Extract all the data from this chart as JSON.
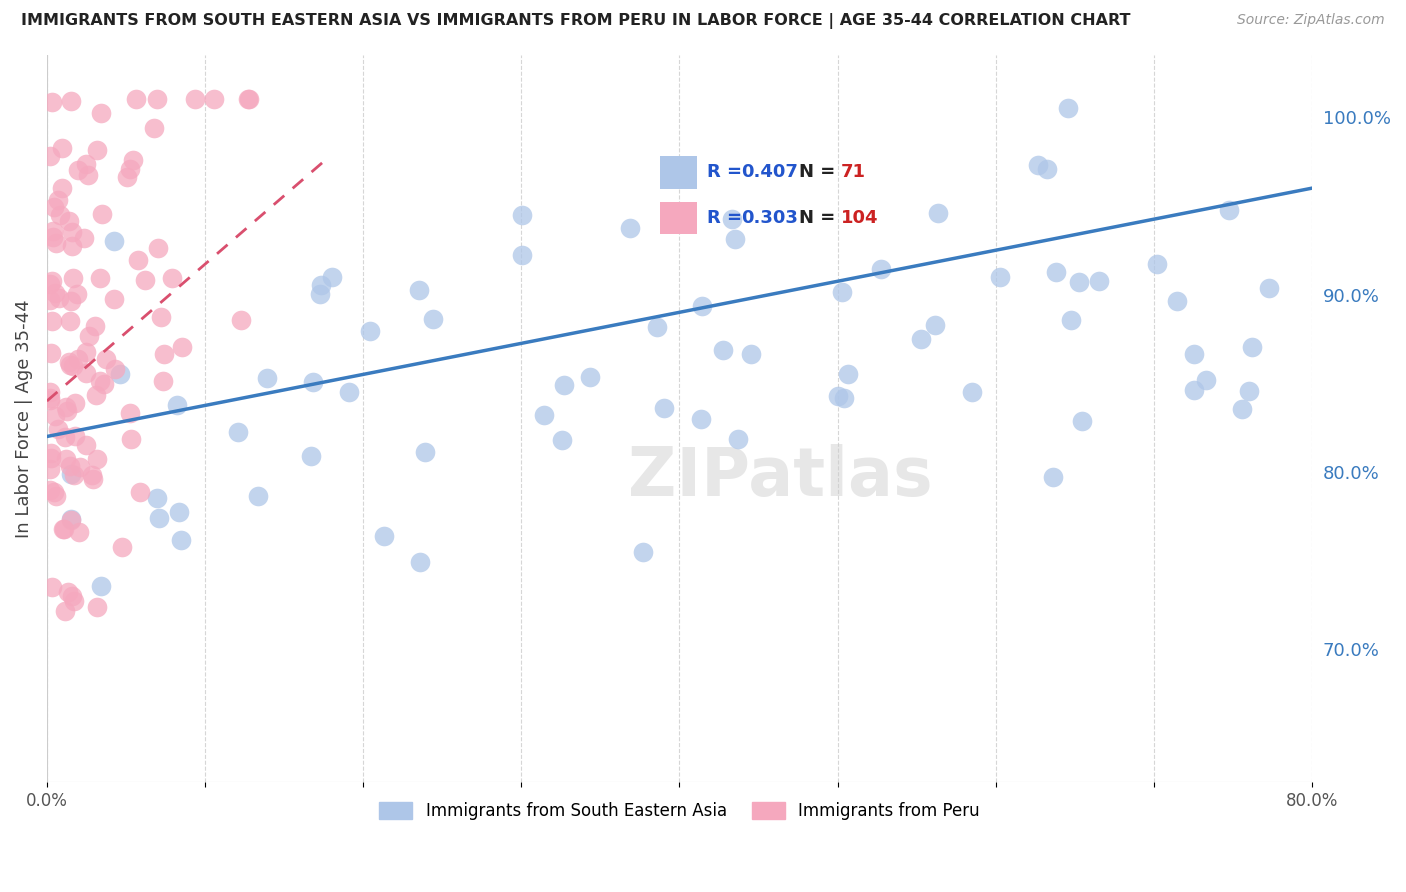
{
  "title": "IMMIGRANTS FROM SOUTH EASTERN ASIA VS IMMIGRANTS FROM PERU IN LABOR FORCE | AGE 35-44 CORRELATION CHART",
  "source": "Source: ZipAtlas.com",
  "ylabel": "In Labor Force | Age 35-44",
  "r_blue": 0.407,
  "n_blue": 71,
  "r_pink": 0.303,
  "n_pink": 104,
  "blue_color": "#aec6e8",
  "pink_color": "#f5a8be",
  "trend_blue_color": "#3a7bbf",
  "trend_pink_color": "#d94f6e",
  "title_color": "#222222",
  "source_color": "#999999",
  "legend_r_color": "#2255cc",
  "legend_n_color": "#cc2222",
  "xlim": [
    0.0,
    0.8
  ],
  "ylim": [
    0.625,
    1.035
  ],
  "yticks": [
    0.7,
    0.8,
    0.9,
    1.0
  ],
  "ytick_labels": [
    "70.0%",
    "80.0%",
    "90.0%",
    "100.0%"
  ],
  "xticks": [
    0.0,
    0.1,
    0.2,
    0.3,
    0.4,
    0.5,
    0.6,
    0.7,
    0.8
  ],
  "xtick_labels": [
    "0.0%",
    "",
    "",
    "",
    "",
    "",
    "",
    "",
    "80.0%"
  ],
  "legend_label_blue": "Immigrants from South Eastern Asia",
  "legend_label_pink": "Immigrants from Peru",
  "blue_trend_x0": 0.0,
  "blue_trend_y0": 0.82,
  "blue_trend_x1": 0.8,
  "blue_trend_y1": 0.96,
  "pink_trend_x0": 0.0,
  "pink_trend_y0": 0.84,
  "pink_trend_x1": 0.175,
  "pink_trend_y1": 0.975
}
